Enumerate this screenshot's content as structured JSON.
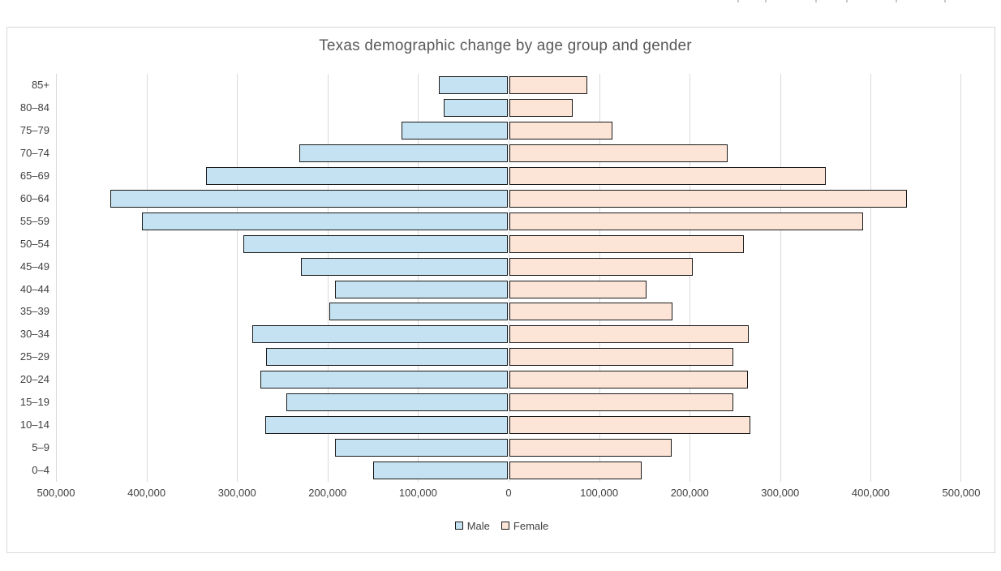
{
  "chart": {
    "title": "Texas demographic change by age group and gender"
  },
  "chart_data": {
    "type": "bar",
    "variant": "population_pyramid",
    "orientation": "horizontal",
    "title": "Texas demographic change by age group and gender",
    "categories_top_to_bottom": [
      "85+",
      "80–84",
      "75–79",
      "70–74",
      "65–69",
      "60–64",
      "55–59",
      "50–54",
      "45–49",
      "40–44",
      "35–39",
      "30–34",
      "25–29",
      "20–24",
      "15–19",
      "10–14",
      "5–9",
      "0–4"
    ],
    "series": [
      {
        "name": "Male",
        "side": "left",
        "fill": "#C4E2F2",
        "border": "#1a1a1a",
        "values": [
          77000,
          72000,
          118000,
          231000,
          334000,
          440000,
          405000,
          293000,
          229000,
          192000,
          198000,
          283000,
          268000,
          274000,
          246000,
          269000,
          192000,
          150000
        ]
      },
      {
        "name": "Female",
        "side": "right",
        "fill": "#FCE4D6",
        "border": "#1a1a1a",
        "values": [
          87000,
          71000,
          115000,
          242000,
          350000,
          440000,
          392000,
          260000,
          203000,
          152000,
          181000,
          265000,
          248000,
          264000,
          248000,
          267000,
          180000,
          147000
        ]
      }
    ],
    "x_axis": {
      "min": -500000,
      "max": 500000,
      "tick_interval": 100000,
      "tick_labels": [
        "500,000",
        "400,000",
        "300,000",
        "200,000",
        "100,000",
        "0",
        "100,000",
        "200,000",
        "300,000",
        "400,000",
        "500,000"
      ],
      "gridlines": true
    },
    "legend": {
      "position": "bottom",
      "entries": [
        "Male",
        "Female"
      ]
    },
    "colors": {
      "male_fill": "#C4E2F2",
      "female_fill": "#FCE4D6",
      "bar_border": "#1a1a1a",
      "grid": "#D9D9D9",
      "frame_border": "#D9D9D9",
      "title_text": "#595959",
      "axis_text": "#404040"
    }
  }
}
